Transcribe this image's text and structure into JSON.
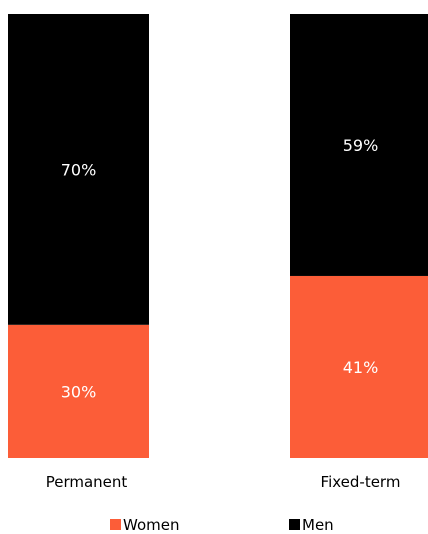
{
  "chart_data": {
    "type": "bar",
    "stacked": true,
    "normalized": true,
    "categories": [
      "Permanent",
      "Fixed-term"
    ],
    "series": [
      {
        "name": "Women",
        "values": [
          30,
          41
        ],
        "labels": [
          "30%",
          "41%"
        ],
        "color": "#fc5d38"
      },
      {
        "name": "Men",
        "values": [
          70,
          59
        ],
        "labels": [
          "70%",
          "59%"
        ],
        "color": "#000000"
      }
    ],
    "ylim": [
      0,
      100
    ],
    "grid": false,
    "legend": "bottom-center"
  }
}
